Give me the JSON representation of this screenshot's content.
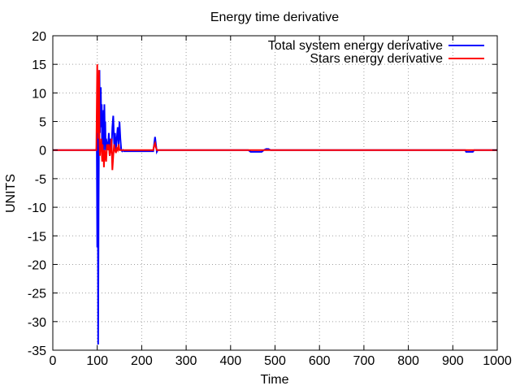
{
  "chart_data": {
    "type": "line",
    "title": "Energy time derivative",
    "xlabel": "Time",
    "ylabel": "UNITS",
    "xlim": [
      0,
      1000
    ],
    "ylim": [
      -35,
      20
    ],
    "xticks": [
      0,
      100,
      200,
      300,
      400,
      500,
      600,
      700,
      800,
      900,
      1000
    ],
    "yticks": [
      20,
      15,
      10,
      5,
      0,
      -5,
      -10,
      -15,
      -20,
      -25,
      -30,
      -35
    ],
    "grid": true,
    "legend_position": "top-right",
    "colors": {
      "total": "#0000ff",
      "stars": "#ff0000"
    },
    "series": [
      {
        "name": "Total system energy derivative",
        "color": "#0000ff",
        "x": [
          0,
          98,
          99,
          100,
          101,
          102,
          103,
          104,
          105,
          106,
          107,
          108,
          109,
          110,
          111,
          112,
          113,
          114,
          115,
          116,
          117,
          118,
          119,
          120,
          122,
          124,
          126,
          128,
          130,
          132,
          134,
          136,
          138,
          140,
          142,
          144,
          146,
          148,
          150,
          152,
          154,
          156,
          158,
          160,
          165,
          170,
          180,
          190,
          200,
          210,
          220,
          226,
          228,
          230,
          232,
          234,
          236,
          240,
          300,
          400,
          440,
          445,
          470,
          475,
          480,
          485,
          490,
          500,
          600,
          700,
          800,
          900,
          928,
          930,
          945,
          948,
          950,
          1000
        ],
        "y": [
          0,
          0,
          1,
          -17,
          6,
          -34,
          -10,
          5,
          14,
          3,
          10,
          11,
          4,
          8,
          -1,
          6,
          2,
          7,
          0,
          8,
          3,
          5,
          0,
          2,
          1,
          0,
          3,
          -1,
          2,
          0,
          4,
          6,
          1,
          3,
          0,
          2,
          4,
          1,
          5,
          2,
          0,
          -0.2,
          0,
          -0.2,
          -0.2,
          -0.2,
          -0.2,
          -0.2,
          -0.2,
          -0.2,
          -0.2,
          -0.2,
          1,
          2.3,
          1,
          -0.3,
          0,
          0,
          0,
          0,
          0,
          -0.3,
          -0.3,
          0,
          0.2,
          0.2,
          0,
          0,
          0,
          0,
          0,
          0,
          0,
          -0.3,
          -0.3,
          0,
          0,
          0
        ]
      },
      {
        "name": "Stars energy derivative",
        "color": "#ff0000",
        "x": [
          0,
          98,
          99,
          100,
          101,
          102,
          103,
          104,
          105,
          106,
          107,
          108,
          109,
          110,
          111,
          112,
          113,
          114,
          115,
          116,
          117,
          118,
          120,
          122,
          124,
          126,
          128,
          130,
          132,
          134,
          136,
          138,
          140,
          142,
          144,
          146,
          148,
          150,
          155,
          160,
          200,
          226,
          228,
          230,
          232,
          234,
          240,
          1000
        ],
        "y": [
          0,
          0,
          7.5,
          15,
          3,
          13,
          2,
          14,
          1,
          -1,
          1,
          0,
          2,
          0,
          -2,
          1,
          -1,
          0,
          -3,
          -1,
          0,
          -1,
          -2,
          1,
          0,
          1,
          -1,
          0,
          2,
          -3.5,
          -1,
          1,
          0,
          -0.5,
          0.3,
          0,
          1,
          0,
          0,
          0,
          0,
          0,
          0.8,
          1.2,
          0.5,
          0,
          0,
          0
        ]
      }
    ]
  }
}
